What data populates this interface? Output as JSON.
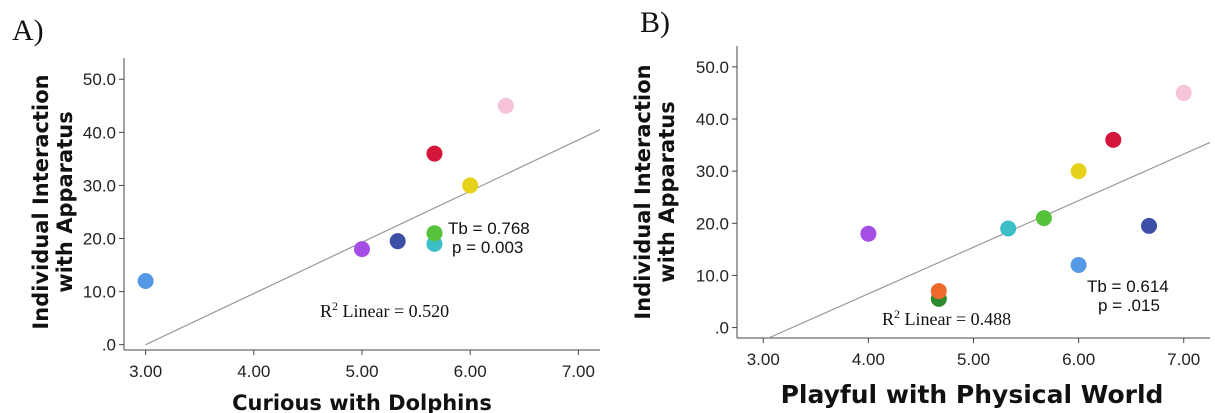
{
  "chart_data": [
    {
      "panel_label": "A)",
      "type": "scatter",
      "title": "",
      "xlabel": "Curious with Dolphins",
      "ylabel": [
        "Individual Interaction",
        "with Apparatus"
      ],
      "xlim": [
        2.8,
        7.2
      ],
      "ylim": [
        -1,
        54
      ],
      "x_ticks": [
        "3.00",
        "4.00",
        "5.00",
        "6.00",
        "7.00"
      ],
      "y_ticks": [
        ".0",
        "10.0",
        "20.0",
        "30.0",
        "40.0",
        "50.0"
      ],
      "points": [
        {
          "x": 3.0,
          "y": 12,
          "color": "#5599e6"
        },
        {
          "x": 5.0,
          "y": 18,
          "color": "#a64de6"
        },
        {
          "x": 5.33,
          "y": 19.5,
          "color": "#3d4fa6"
        },
        {
          "x": 5.67,
          "y": 19,
          "color": "#3dbfc8"
        },
        {
          "x": 5.67,
          "y": 21,
          "color": "#55c23a"
        },
        {
          "x": 5.67,
          "y": 36,
          "color": "#d6153a"
        },
        {
          "x": 6.0,
          "y": 30,
          "color": "#e6d11a"
        },
        {
          "x": 6.33,
          "y": 45,
          "color": "#f7c3da"
        }
      ],
      "fit_line": {
        "x": [
          3.0,
          7.2
        ],
        "y": [
          0,
          40.5
        ],
        "color": "#999999"
      },
      "annotations": {
        "stat1": "Tb = 0.768",
        "stat2": "p = 0.003",
        "r2_prefix": "R",
        "r2_sup": "2",
        "r2_rest": " Linear = 0.520"
      }
    },
    {
      "panel_label": "B)",
      "type": "scatter",
      "title": "",
      "xlabel": "Playful with Physical World",
      "ylabel": [
        "Individual Interaction",
        "with Apparatus"
      ],
      "xlim": [
        2.75,
        7.25
      ],
      "ylim": [
        -2,
        54
      ],
      "x_ticks": [
        "3.00",
        "4.00",
        "5.00",
        "6.00",
        "7.00"
      ],
      "y_ticks": [
        ".0",
        "10.0",
        "20.0",
        "30.0",
        "40.0",
        "50.0"
      ],
      "points": [
        {
          "x": 4.0,
          "y": 18,
          "color": "#a64de6"
        },
        {
          "x": 4.67,
          "y": 5.5,
          "color": "#2e8a2e"
        },
        {
          "x": 4.67,
          "y": 7,
          "color": "#ee6a2a"
        },
        {
          "x": 5.33,
          "y": 19,
          "color": "#3dbfc8"
        },
        {
          "x": 5.67,
          "y": 21,
          "color": "#55c23a"
        },
        {
          "x": 6.0,
          "y": 12,
          "color": "#5599e6"
        },
        {
          "x": 6.0,
          "y": 30,
          "color": "#e6d11a"
        },
        {
          "x": 6.33,
          "y": 36,
          "color": "#d6153a"
        },
        {
          "x": 6.67,
          "y": 19.5,
          "color": "#3d4fa6"
        },
        {
          "x": 7.0,
          "y": 45,
          "color": "#f7c3da"
        }
      ],
      "fit_line": {
        "x": [
          3.05,
          7.25
        ],
        "y": [
          -2,
          35.5
        ],
        "color": "#999999"
      },
      "annotations": {
        "stat1": "Tb = 0.614",
        "stat2": "p = .015",
        "r2_prefix": "R",
        "r2_sup": "2",
        "r2_rest": " Linear = 0.488"
      }
    }
  ]
}
